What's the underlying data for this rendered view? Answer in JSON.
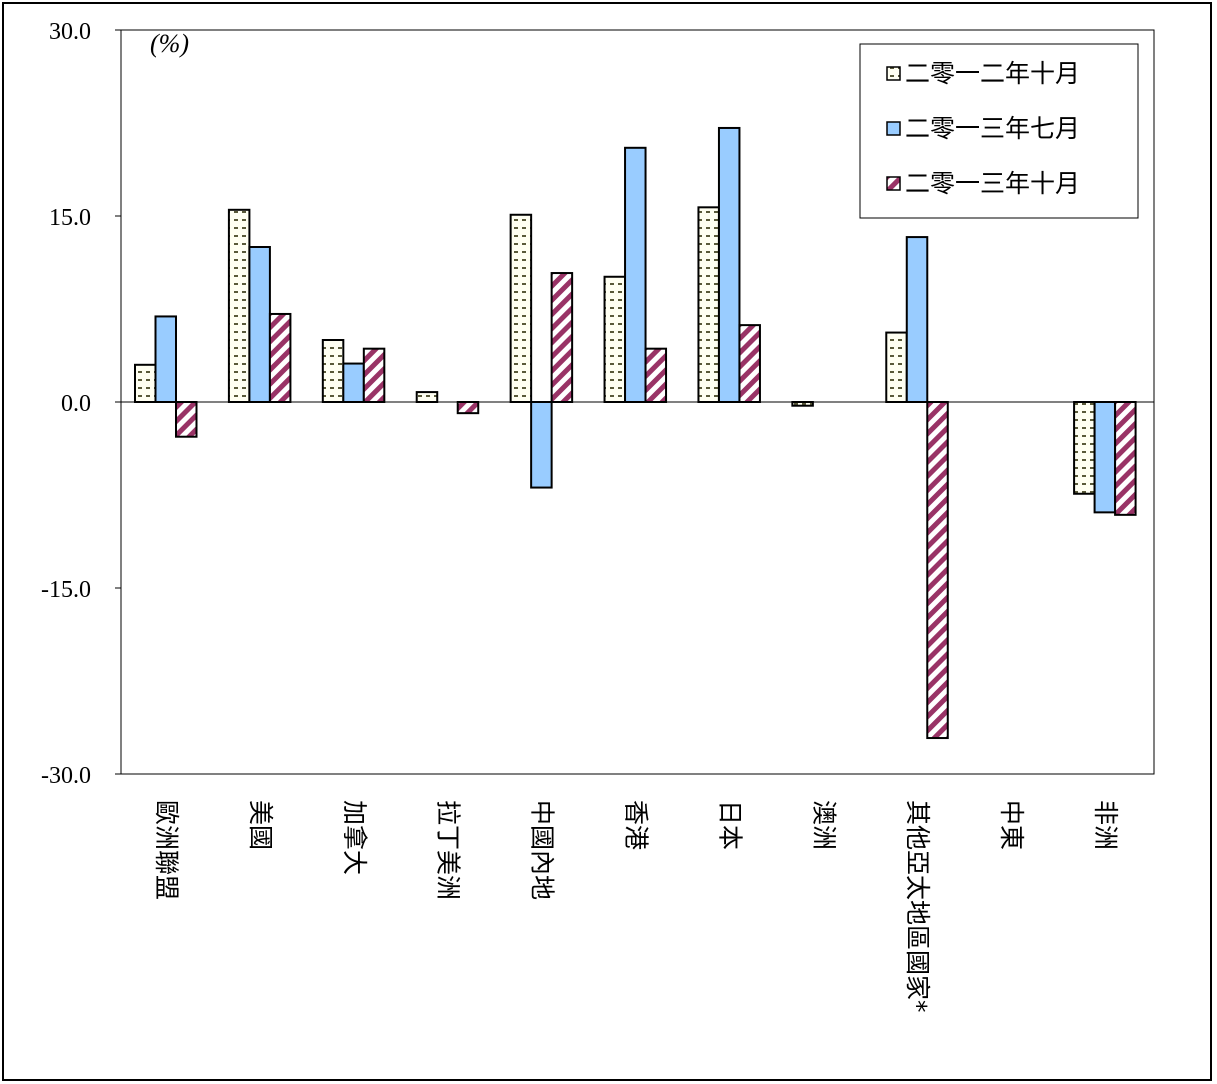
{
  "chart_data": {
    "type": "bar",
    "ylabel": "(%)",
    "ylim": [
      -30,
      30
    ],
    "yticks": [
      "30.0",
      "15.0",
      "0.0",
      "-15.0",
      "-30.0"
    ],
    "ytick_values": [
      30,
      15,
      0,
      -15,
      -30
    ],
    "grid": false,
    "legend_position": "top-right",
    "categories": [
      "歐洲聯盟",
      "美國",
      "加拿大",
      "拉丁美洲",
      "中國內地",
      "香港",
      "日本",
      "澳洲",
      "其他亞太地區國家*",
      "中東",
      "非洲"
    ],
    "series": [
      {
        "name": "二零一二年十月",
        "pattern": "dots",
        "color": "#5a5a3a",
        "values": [
          3.0,
          15.5,
          5.0,
          0.8,
          15.1,
          10.1,
          15.7,
          -0.3,
          5.6,
          0,
          -7.4
        ]
      },
      {
        "name": "二零一三年七月",
        "pattern": "solid",
        "color": "#99ccff",
        "values": [
          6.9,
          12.5,
          3.1,
          0,
          -6.9,
          20.5,
          22.1,
          0,
          13.3,
          0,
          -8.9
        ]
      },
      {
        "name": "二零一三年十月",
        "pattern": "stripes",
        "color": "#993366",
        "values": [
          -2.8,
          7.1,
          4.3,
          -0.9,
          10.4,
          4.3,
          6.2,
          0,
          -27.1,
          0,
          -9.1
        ]
      }
    ]
  }
}
